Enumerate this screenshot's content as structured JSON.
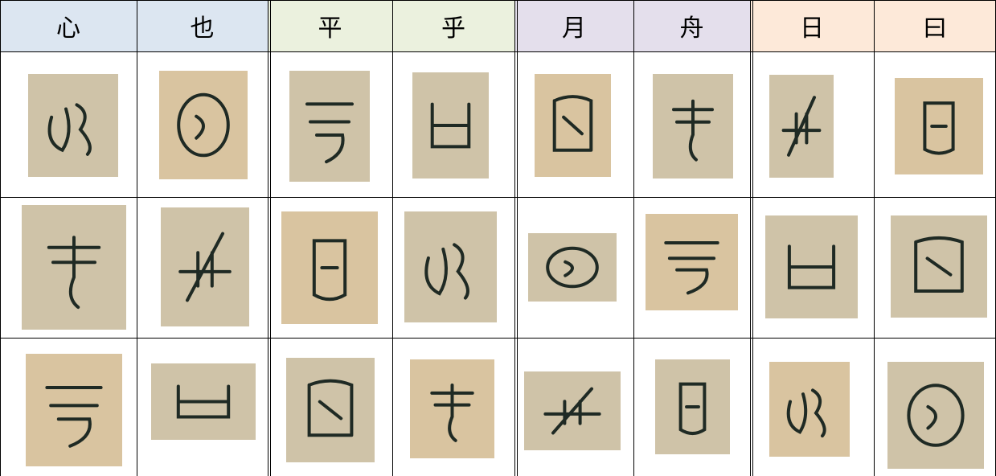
{
  "header": {
    "columns": [
      "心",
      "也",
      "平",
      "乎",
      "月",
      "舟",
      "日",
      "曰"
    ]
  }
}
